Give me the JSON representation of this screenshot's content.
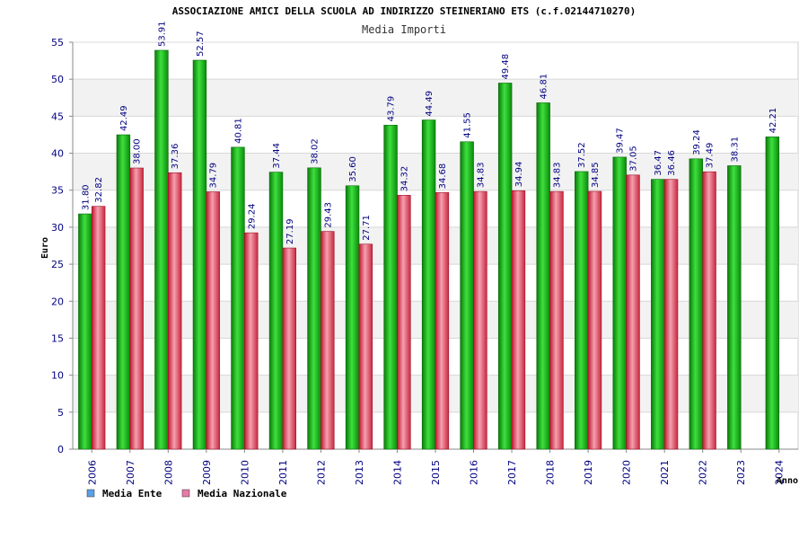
{
  "chart_data": {
    "type": "bar",
    "title": "ASSOCIAZIONE AMICI DELLA SCUOLA AD INDIRIZZO STEINERIANO ETS (c.f.02144710270)",
    "subtitle": "Media Importi",
    "xlabel": "Anno",
    "ylabel": "Euro",
    "ylim": [
      0,
      55
    ],
    "yticks": [
      0,
      5,
      10,
      15,
      20,
      25,
      30,
      35,
      40,
      45,
      50,
      55
    ],
    "grid": true,
    "legend_position": "bottom-left",
    "categories": [
      "2006",
      "2007",
      "2008",
      "2009",
      "2010",
      "2011",
      "2012",
      "2013",
      "2014",
      "2015",
      "2016",
      "2017",
      "2018",
      "2019",
      "2020",
      "2021",
      "2022",
      "2023",
      "2024"
    ],
    "series": [
      {
        "name": "Media Ente",
        "color": "#22b822",
        "legend_color": "#5aa0e8",
        "values": [
          31.8,
          42.49,
          53.91,
          52.57,
          40.81,
          37.44,
          38.02,
          35.6,
          43.79,
          44.49,
          41.55,
          49.48,
          46.81,
          37.52,
          39.47,
          36.47,
          39.24,
          38.31,
          42.21
        ],
        "labels": [
          "31.80",
          "42.49",
          "53.91",
          "52.57",
          "40.81",
          "37.44",
          "38.02",
          "35.60",
          "43.79",
          "44.49",
          "41.55",
          "49.48",
          "46.81",
          "37.52",
          "39.47",
          "36.47",
          "39.24",
          "38.31",
          "42.21"
        ]
      },
      {
        "name": "Media Nazionale",
        "color": "#e8506a",
        "legend_color": "#e87aa8",
        "values": [
          32.82,
          38.0,
          37.36,
          34.79,
          29.24,
          27.19,
          29.43,
          27.71,
          34.32,
          34.68,
          34.83,
          34.94,
          34.83,
          34.85,
          37.05,
          36.46,
          37.49,
          null,
          null
        ],
        "labels": [
          "32.82",
          "38.00",
          "37.36",
          "34.79",
          "29.24",
          "27.19",
          "29.43",
          "27.71",
          "34.32",
          "34.68",
          "34.83",
          "34.94",
          "34.83",
          "34.85",
          "37.05",
          "36.46",
          "37.49",
          null,
          null
        ]
      }
    ]
  }
}
